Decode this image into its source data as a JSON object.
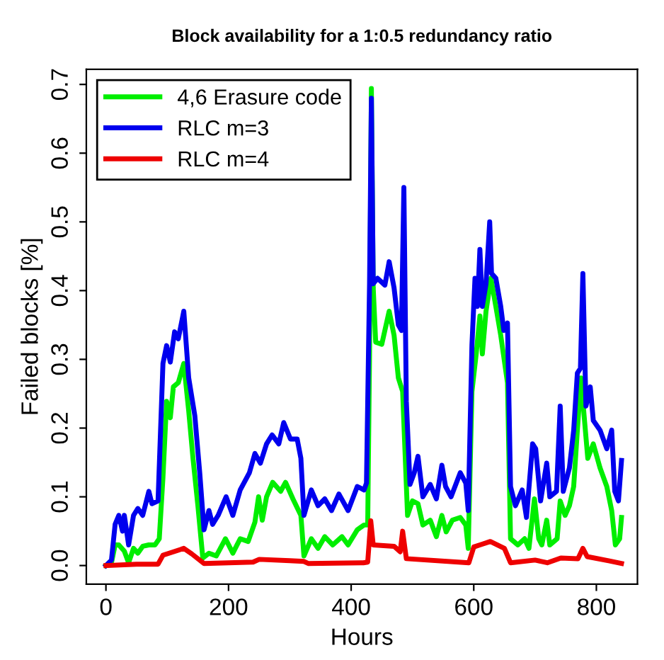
{
  "chart_data": {
    "type": "line",
    "title": "Block availability for a 1:0.5 redundancy ratio",
    "xlabel": "Hours",
    "ylabel": "Failed blocks [%]",
    "xlim": [
      -32,
      867
    ],
    "ylim": [
      -0.027,
      0.722
    ],
    "xticks": [
      0,
      200,
      400,
      600,
      800
    ],
    "yticks": [
      {
        "value": 0,
        "label": "0.0"
      },
      0.1,
      0.2,
      0.3,
      0.4,
      0.5,
      0.6,
      0.7
    ],
    "grid": false,
    "legend": "top left",
    "marker": "none",
    "line_style": "solid",
    "series": [
      {
        "name": "4,6 Erasure code",
        "color": "#00ee00",
        "x": [
          0,
          9,
          15,
          21,
          30,
          37,
          45,
          52,
          60,
          70,
          80,
          87,
          93,
          99,
          105,
          110,
          118,
          127,
          135,
          142,
          150,
          158,
          168,
          180,
          195,
          207,
          219,
          232,
          243,
          249,
          255,
          262,
          272,
          285,
          293,
          305,
          318,
          323,
          335,
          346,
          357,
          370,
          385,
          395,
          410,
          421,
          427,
          430,
          433,
          436,
          440,
          450,
          462,
          470,
          477,
          484,
          492,
          500,
          509,
          517,
          529,
          539,
          548,
          555,
          565,
          578,
          587,
          591,
          597,
          604,
          610,
          614,
          620,
          628,
          636,
          644,
          655,
          660,
          672,
          683,
          690,
          699,
          706,
          711,
          719,
          724,
          736,
          741,
          749,
          756,
          763,
          769,
          775,
          780,
          786,
          795,
          806,
          817,
          825,
          831,
          838,
          841
        ],
        "values": [
          0,
          0.004,
          0.03,
          0.03,
          0.021,
          0.004,
          0.025,
          0.018,
          0.028,
          0.03,
          0.03,
          0.039,
          0.128,
          0.239,
          0.215,
          0.26,
          0.266,
          0.294,
          0.225,
          0.156,
          0.087,
          0.011,
          0.018,
          0.014,
          0.039,
          0.018,
          0.039,
          0.035,
          0.063,
          0.1,
          0.066,
          0.1,
          0.121,
          0.108,
          0.121,
          0.097,
          0.073,
          0.014,
          0.039,
          0.025,
          0.042,
          0.03,
          0.042,
          0.03,
          0.052,
          0.059,
          0.059,
          0.308,
          0.694,
          0.404,
          0.325,
          0.322,
          0.37,
          0.335,
          0.273,
          0.253,
          0.073,
          0.094,
          0.09,
          0.059,
          0.066,
          0.042,
          0.073,
          0.049,
          0.066,
          0.07,
          0.059,
          0.025,
          0.253,
          0.308,
          0.363,
          0.308,
          0.37,
          0.418,
          0.377,
          0.335,
          0.266,
          0.039,
          0.03,
          0.039,
          0.025,
          0.097,
          0.039,
          0.03,
          0.066,
          0.03,
          0.039,
          0.094,
          0.073,
          0.087,
          0.115,
          0.197,
          0.273,
          0.218,
          0.156,
          0.177,
          0.142,
          0.115,
          0.08,
          0.03,
          0.039,
          0.07
        ]
      },
      {
        "name": "RLC m=3",
        "color": "#0000ee",
        "x": [
          0,
          9,
          15,
          21,
          27,
          30,
          37,
          45,
          52,
          60,
          70,
          75,
          85,
          93,
          99,
          105,
          112,
          118,
          127,
          135,
          145,
          153,
          160,
          168,
          174,
          183,
          196,
          207,
          219,
          234,
          243,
          252,
          262,
          271,
          282,
          290,
          301,
          312,
          318,
          323,
          335,
          346,
          357,
          368,
          380,
          395,
          410,
          421,
          425,
          430,
          433,
          436,
          443,
          455,
          462,
          470,
          477,
          482,
          486,
          490,
          496,
          503,
          509,
          517,
          529,
          539,
          548,
          554,
          563,
          578,
          587,
          591,
          597,
          602,
          606,
          610,
          614,
          620,
          626,
          629,
          636,
          644,
          649,
          655,
          660,
          668,
          679,
          686,
          696,
          701,
          709,
          719,
          724,
          735,
          741,
          746,
          756,
          763,
          769,
          774,
          778,
          783,
          790,
          795,
          806,
          817,
          825,
          830,
          836,
          841
        ],
        "values": [
          0,
          0.008,
          0.06,
          0.073,
          0.05,
          0.073,
          0.03,
          0.073,
          0.083,
          0.073,
          0.108,
          0.09,
          0.094,
          0.294,
          0.32,
          0.296,
          0.34,
          0.33,
          0.37,
          0.273,
          0.218,
          0.135,
          0.052,
          0.08,
          0.06,
          0.073,
          0.1,
          0.073,
          0.11,
          0.135,
          0.163,
          0.149,
          0.177,
          0.19,
          0.177,
          0.208,
          0.184,
          0.184,
          0.156,
          0.073,
          0.11,
          0.087,
          0.097,
          0.08,
          0.104,
          0.08,
          0.115,
          0.11,
          0.12,
          0.41,
          0.68,
          0.41,
          0.418,
          0.408,
          0.442,
          0.404,
          0.35,
          0.342,
          0.55,
          0.239,
          0.118,
          0.135,
          0.159,
          0.1,
          0.118,
          0.097,
          0.146,
          0.115,
          0.1,
          0.135,
          0.12,
          0.08,
          0.32,
          0.418,
          0.377,
          0.46,
          0.377,
          0.41,
          0.5,
          0.425,
          0.418,
          0.377,
          0.342,
          0.353,
          0.115,
          0.087,
          0.11,
          0.07,
          0.177,
          0.17,
          0.094,
          0.149,
          0.1,
          0.108,
          0.232,
          0.108,
          0.142,
          0.197,
          0.28,
          0.287,
          0.425,
          0.232,
          0.26,
          0.211,
          0.197,
          0.17,
          0.197,
          0.108,
          0.094,
          0.153
        ]
      },
      {
        "name": "RLC m=4",
        "color": "#ee0000",
        "x": [
          0,
          50,
          85,
          93,
          110,
          127,
          140,
          160,
          200,
          240,
          250,
          300,
          323,
          330,
          420,
          427,
          432,
          436,
          470,
          480,
          484,
          490,
          592,
          600,
          610,
          627,
          650,
          660,
          700,
          720,
          742,
          770,
          778,
          785,
          820,
          841
        ],
        "values": [
          0,
          0.002,
          0.002,
          0.015,
          0.02,
          0.025,
          0.017,
          0.003,
          0.004,
          0.005,
          0.009,
          0.007,
          0.006,
          0.003,
          0.004,
          0.005,
          0.065,
          0.03,
          0.028,
          0.02,
          0.05,
          0.01,
          0.004,
          0.027,
          0.03,
          0.035,
          0.025,
          0.004,
          0.008,
          0.004,
          0.011,
          0.01,
          0.025,
          0.013,
          0.007,
          0.003
        ]
      }
    ]
  }
}
